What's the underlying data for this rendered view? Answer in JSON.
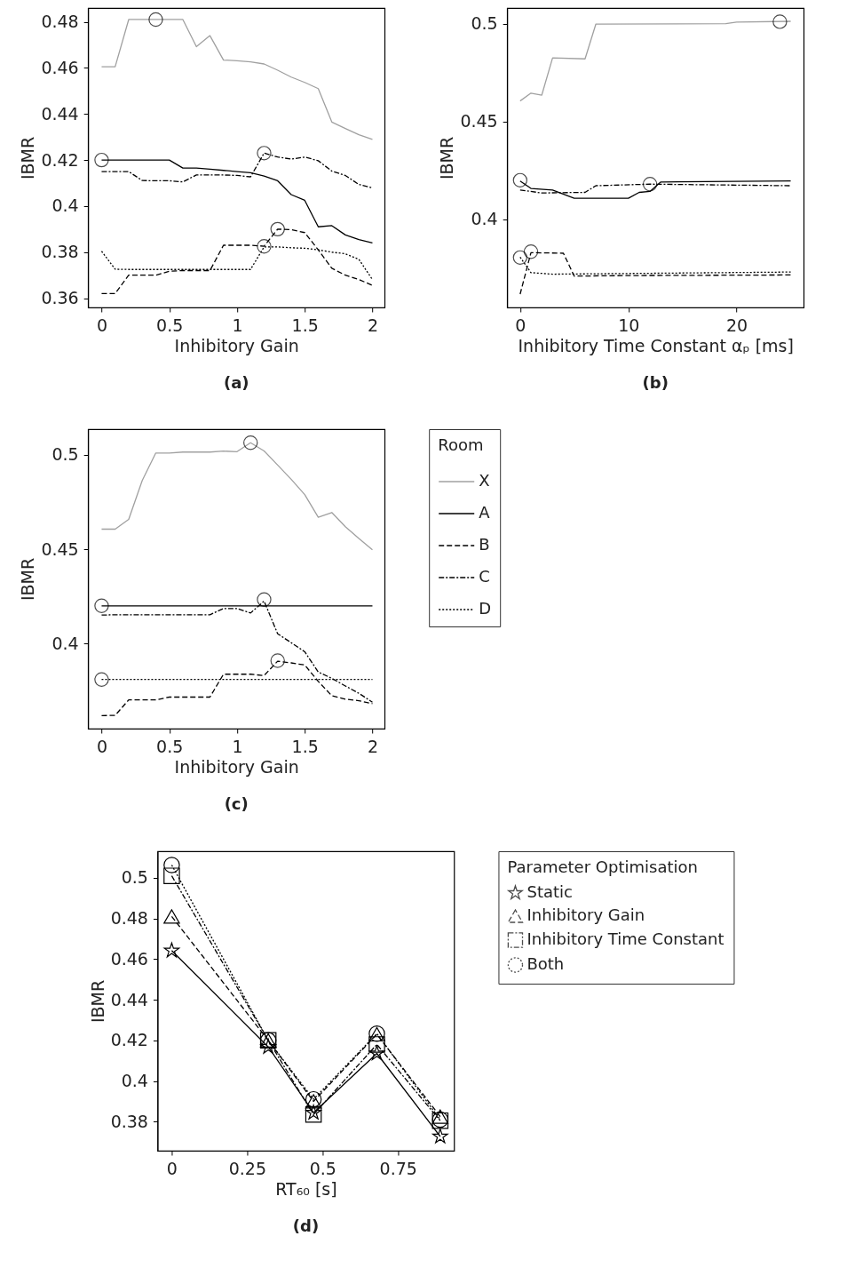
{
  "chart_data": [
    {
      "type": "line",
      "title": "(a)",
      "xlabel": "Inhibitory Gain",
      "ylabel": "IBMR",
      "xlim": [
        -0.1,
        2.09
      ],
      "ylim": [
        0.356,
        0.486
      ],
      "xticks": [
        0,
        0.5,
        1,
        1.5,
        2
      ],
      "yticks": [
        0.36,
        0.38,
        0.4,
        0.42,
        0.44,
        0.46,
        0.48
      ],
      "x": [
        0,
        0.1,
        0.2,
        0.3,
        0.4,
        0.5,
        0.6,
        0.7,
        0.8,
        0.9,
        1,
        1.1,
        1.2,
        1.3,
        1.4,
        1.5,
        1.6,
        1.7,
        1.8,
        1.9,
        2
      ],
      "series": [
        {
          "color": "#a0a0a0",
          "line_style": "solid",
          "values": [
            0.4605,
            0.4605,
            0.481,
            0.481,
            0.481,
            0.481,
            0.481,
            0.4692,
            0.474,
            0.4634,
            0.4631,
            0.4626,
            0.4617,
            0.459,
            0.456,
            0.4537,
            0.451,
            0.4365,
            0.4337,
            0.431,
            0.429
          ]
        },
        {
          "color": "#000000",
          "line_style": "solid",
          "values": [
            0.42,
            0.42,
            0.42,
            0.42,
            0.42,
            0.42,
            0.4165,
            0.4165,
            0.416,
            0.4155,
            0.415,
            0.4145,
            0.413,
            0.411,
            0.405,
            0.4025,
            0.391,
            0.3915,
            0.3875,
            0.3855,
            0.384
          ]
        },
        {
          "color": "#000000",
          "line_style": "dashed",
          "values": [
            0.362,
            0.362,
            0.37,
            0.37,
            0.37,
            0.3717,
            0.372,
            0.372,
            0.372,
            0.383,
            0.383,
            0.383,
            0.3826,
            0.39,
            0.3898,
            0.3885,
            0.381,
            0.373,
            0.37,
            0.3681,
            0.3656
          ]
        },
        {
          "color": "#000000",
          "line_style": "dashdot",
          "values": [
            0.415,
            0.415,
            0.415,
            0.4111,
            0.411,
            0.411,
            0.4105,
            0.4135,
            0.4135,
            0.4135,
            0.4133,
            0.4127,
            0.423,
            0.4213,
            0.4204,
            0.4213,
            0.4197,
            0.4152,
            0.4133,
            0.4094,
            0.4079
          ]
        },
        {
          "color": "#000000",
          "line_style": "dotted",
          "values": [
            0.3804,
            0.3726,
            0.3725,
            0.3725,
            0.3725,
            0.3725,
            0.3725,
            0.3725,
            0.3725,
            0.3725,
            0.3725,
            0.3725,
            0.3823,
            0.3823,
            0.3819,
            0.3817,
            0.381,
            0.38,
            0.3793,
            0.3769,
            0.3681
          ]
        },
        {
          "type": "scatter",
          "marker": "circle",
          "color": "#000000",
          "x": [
            0.4,
            0,
            1.2,
            1.3,
            1.2
          ],
          "values": [
            0.481,
            0.42,
            0.423,
            0.39,
            0.3825
          ]
        }
      ]
    },
    {
      "type": "line",
      "title": "(b)",
      "xlabel": "Inhibitory Time Constant αₚ [ms]",
      "ylabel": "IBMR",
      "xlim": [
        -1.2,
        26.2
      ],
      "ylim": [
        0.355,
        0.508
      ],
      "xticks": [
        0,
        10,
        20
      ],
      "yticks": [
        0.4,
        0.45,
        0.5
      ],
      "series": [
        {
          "color": "#a0a0a0",
          "line_style": "solid",
          "x": [
            0,
            1,
            2,
            3,
            6,
            7,
            19,
            20,
            25
          ],
          "values": [
            0.4605,
            0.4645,
            0.4635,
            0.4825,
            0.482,
            0.4998,
            0.5,
            0.5008,
            0.5012
          ]
        },
        {
          "color": "#000000",
          "line_style": "solid",
          "x": [
            0,
            1,
            3,
            5,
            10,
            11,
            12,
            13,
            25
          ],
          "values": [
            0.4196,
            0.4158,
            0.415,
            0.4108,
            0.4108,
            0.4138,
            0.4143,
            0.4191,
            0.4196
          ]
        },
        {
          "color": "#000000",
          "line_style": "dashed",
          "x": [
            0,
            1,
            4,
            5,
            10,
            25
          ],
          "values": [
            0.3618,
            0.383,
            0.3827,
            0.371,
            0.3713,
            0.3716
          ]
        },
        {
          "color": "#000000",
          "line_style": "dashdot",
          "x": [
            0,
            2,
            6,
            7,
            12,
            25
          ],
          "values": [
            0.415,
            0.4135,
            0.4138,
            0.4172,
            0.418,
            0.4172
          ]
        },
        {
          "color": "#000000",
          "line_style": "dotted",
          "x": [
            0,
            1,
            3,
            25
          ],
          "values": [
            0.3807,
            0.3728,
            0.372,
            0.3731
          ]
        },
        {
          "type": "scatter",
          "marker": "circle",
          "color": "#000000",
          "x": [
            24,
            0,
            12,
            1,
            0
          ],
          "values": [
            0.501,
            0.42,
            0.418,
            0.3835,
            0.3805
          ]
        }
      ]
    },
    {
      "type": "line",
      "title": "(c)",
      "xlabel": "Inhibitory Gain",
      "ylabel": "IBMR",
      "xlim": [
        -0.1,
        2.09
      ],
      "ylim": [
        0.355,
        0.5135
      ],
      "xticks": [
        0,
        0.5,
        1,
        1.5,
        2
      ],
      "yticks": [
        0.4,
        0.45,
        0.5
      ],
      "legend": "right",
      "legend_title": "Room",
      "x": [
        0,
        0.1,
        0.2,
        0.3,
        0.4,
        0.5,
        0.6,
        0.7,
        0.8,
        0.9,
        1,
        1.1,
        1.2,
        1.3,
        1.4,
        1.5,
        1.6,
        1.7,
        1.8,
        1.9,
        2
      ],
      "series": [
        {
          "name": "X",
          "color": "#a0a0a0",
          "line_style": "solid",
          "values": [
            0.4606,
            0.4606,
            0.4658,
            0.4863,
            0.5009,
            0.5009,
            0.5014,
            0.5014,
            0.5014,
            0.5019,
            0.5016,
            0.5063,
            0.502,
            0.4945,
            0.487,
            0.4789,
            0.4669,
            0.4694,
            0.4619,
            0.4556,
            0.4496
          ]
        },
        {
          "name": "A",
          "color": "#000000",
          "line_style": "solid",
          "values": [
            0.42,
            0.42,
            0.42,
            0.42,
            0.42,
            0.42,
            0.42,
            0.42,
            0.42,
            0.42,
            0.42,
            0.42,
            0.42,
            0.42,
            0.42,
            0.42,
            0.42,
            0.42,
            0.42,
            0.42,
            0.42
          ]
        },
        {
          "name": "B",
          "color": "#000000",
          "line_style": "dashed",
          "values": [
            0.3619,
            0.362,
            0.3702,
            0.3702,
            0.3702,
            0.3717,
            0.3717,
            0.3717,
            0.3717,
            0.3838,
            0.3838,
            0.3838,
            0.3831,
            0.3907,
            0.3898,
            0.3887,
            0.38,
            0.3724,
            0.3706,
            0.3698,
            0.3682
          ]
        },
        {
          "name": "C",
          "color": "#000000",
          "line_style": "dashdot",
          "values": [
            0.4151,
            0.4153,
            0.4153,
            0.4153,
            0.4153,
            0.4153,
            0.4153,
            0.4153,
            0.4153,
            0.4186,
            0.4186,
            0.4162,
            0.4225,
            0.4052,
            0.4005,
            0.3957,
            0.385,
            0.3816,
            0.3776,
            0.3737,
            0.369
          ]
        },
        {
          "name": "D",
          "color": "#000000",
          "line_style": "dotted",
          "values": [
            0.381,
            0.381,
            0.381,
            0.381,
            0.381,
            0.381,
            0.381,
            0.381,
            0.381,
            0.381,
            0.381,
            0.381,
            0.381,
            0.381,
            0.381,
            0.381,
            0.381,
            0.381,
            0.381,
            0.381,
            0.381
          ]
        },
        {
          "type": "scatter",
          "marker": "circle",
          "color": "#000000",
          "x": [
            1.1,
            0,
            1.2,
            1.3,
            0
          ],
          "values": [
            0.5063,
            0.42,
            0.4233,
            0.391,
            0.381
          ]
        }
      ]
    },
    {
      "type": "line",
      "title": "(d)",
      "xlabel": "RT₆₀ [s]",
      "ylabel": "IBMR",
      "xlim": [
        -0.047,
        0.936
      ],
      "ylim": [
        0.3657,
        0.5131
      ],
      "xticks": [
        0,
        0.25,
        0.5,
        0.75
      ],
      "yticks": [
        0.38,
        0.4,
        0.42,
        0.44,
        0.46,
        0.48,
        0.5
      ],
      "legend": "right",
      "legend_title": "Parameter Optimisation",
      "x": [
        0,
        0.32,
        0.47,
        0.68,
        0.89
      ],
      "series": [
        {
          "name": "Static",
          "color": "#000000",
          "line_style": "solid",
          "marker": "star",
          "values": [
            0.4642,
            0.4168,
            0.3844,
            0.4136,
            0.3727
          ]
        },
        {
          "name": "Inhibitory Gain",
          "color": "#000000",
          "line_style": "dashed",
          "marker": "triangle",
          "values": [
            0.481,
            0.42,
            0.39,
            0.423,
            0.3825
          ]
        },
        {
          "name": "Inhibitory Time Constant",
          "color": "#000000",
          "line_style": "dashdot",
          "marker": "square",
          "values": [
            0.501,
            0.42,
            0.3835,
            0.418,
            0.3805
          ]
        },
        {
          "name": "Both",
          "color": "#000000",
          "line_style": "dotted",
          "marker": "circle",
          "values": [
            0.5063,
            0.42,
            0.391,
            0.4233,
            0.381
          ]
        }
      ]
    }
  ]
}
